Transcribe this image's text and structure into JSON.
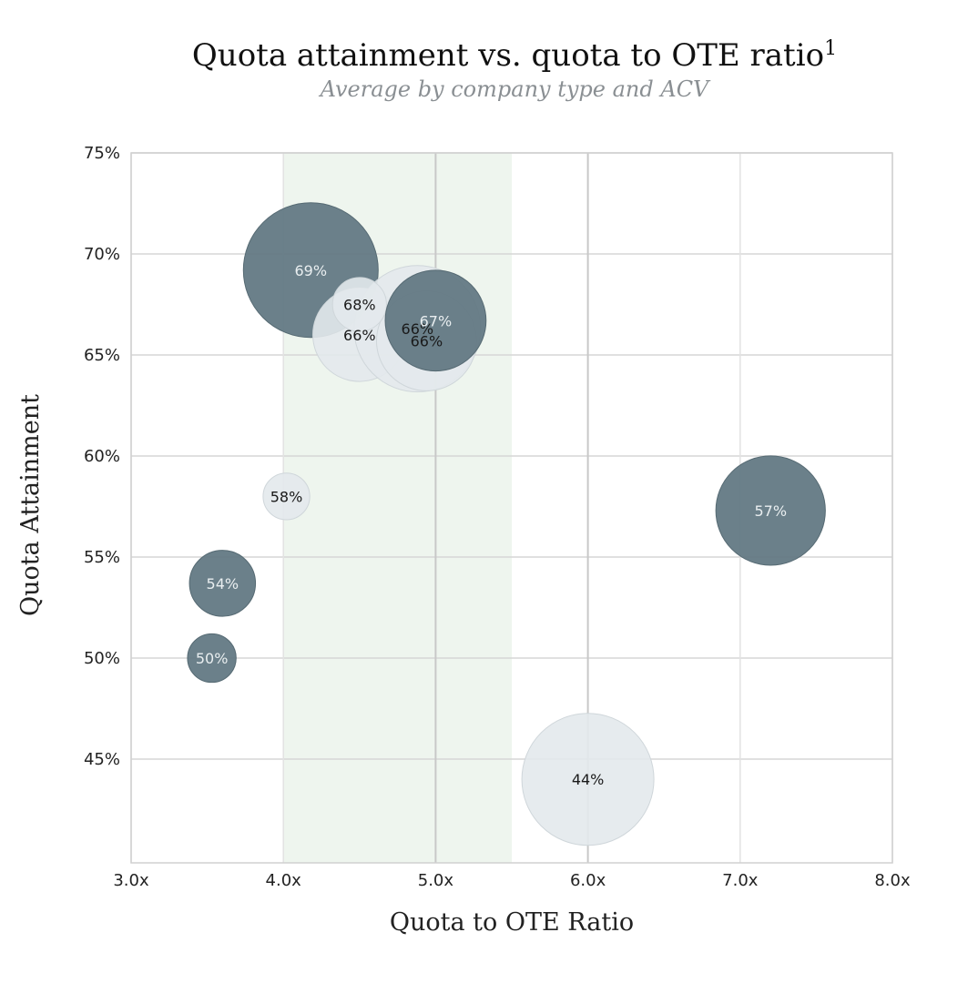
{
  "chart_data": {
    "type": "scatter",
    "title": "Quota attainment vs. quota to OTE ratio",
    "title_superscript": "1",
    "subtitle": "Average by company type and ACV",
    "xlabel": "Quota to OTE Ratio",
    "ylabel": "Quota Attainment",
    "xlim": [
      3.0,
      8.0
    ],
    "ylim": [
      40,
      75
    ],
    "x_ticks": [
      3.0,
      4.0,
      5.0,
      6.0,
      7.0,
      8.0
    ],
    "x_tick_labels": [
      "3.0x",
      "4.0x",
      "5.0x",
      "6.0x",
      "7.0x",
      "8.0x"
    ],
    "y_ticks": [
      45,
      50,
      55,
      60,
      65,
      70,
      75
    ],
    "y_tick_labels": [
      "45%",
      "50%",
      "55%",
      "60%",
      "65%",
      "70%",
      "75%"
    ],
    "grid": true,
    "highlight_band": {
      "x": [
        4.0,
        5.5
      ],
      "color": "#eef5ee"
    },
    "bubble_colors": {
      "dark": "#637984",
      "light": "#e3e9ec"
    },
    "points": [
      {
        "x": 4.18,
        "y": 69.2,
        "size": 1.0,
        "label": "69%",
        "tone": "dark"
      },
      {
        "x": 4.5,
        "y": 66.0,
        "size": 0.48,
        "label": "66%",
        "tone": "light"
      },
      {
        "x": 4.88,
        "y": 66.3,
        "size": 0.88,
        "label": "66%",
        "tone": "light"
      },
      {
        "x": 4.94,
        "y": 65.7,
        "size": 0.55,
        "label": "66%",
        "tone": "light"
      },
      {
        "x": 4.5,
        "y": 67.5,
        "size": 0.16,
        "label": "68%",
        "tone": "light"
      },
      {
        "x": 5.0,
        "y": 66.7,
        "size": 0.56,
        "label": "67%",
        "tone": "dark"
      },
      {
        "x": 4.02,
        "y": 58.0,
        "size": 0.12,
        "label": "58%",
        "tone": "light"
      },
      {
        "x": 3.6,
        "y": 53.7,
        "size": 0.24,
        "label": "54%",
        "tone": "dark"
      },
      {
        "x": 3.53,
        "y": 50.0,
        "size": 0.13,
        "label": "50%",
        "tone": "dark"
      },
      {
        "x": 7.2,
        "y": 57.3,
        "size": 0.66,
        "label": "57%",
        "tone": "dark"
      },
      {
        "x": 6.0,
        "y": 44.0,
        "size": 0.96,
        "label": "44%",
        "tone": "light"
      }
    ]
  }
}
